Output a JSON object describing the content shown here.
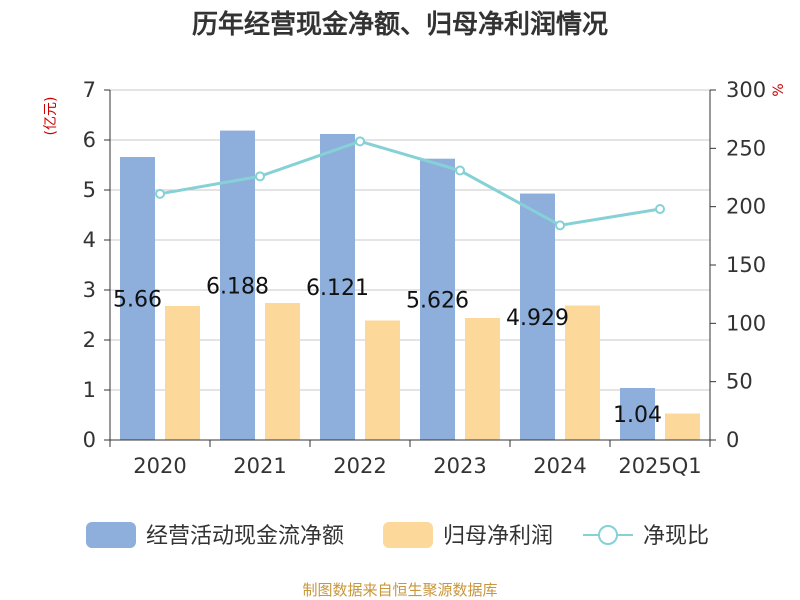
{
  "chart_data": {
    "type": "bar",
    "title": "历年经营现金净额、归母净利润情况",
    "categories": [
      "2020",
      "2021",
      "2022",
      "2023",
      "2024",
      "2025Q1"
    ],
    "series": [
      {
        "name": "经营活动现金流净额",
        "type": "bar",
        "axis": "left",
        "values": [
          5.66,
          6.188,
          6.121,
          5.626,
          4.929,
          1.04
        ],
        "labels": [
          "5.66",
          "6.188",
          "6.121",
          "5.626",
          "4.929",
          "1.04"
        ]
      },
      {
        "name": "归母净利润",
        "type": "bar",
        "axis": "left",
        "values": [
          2.68,
          2.74,
          2.39,
          2.44,
          2.69,
          0.53
        ]
      },
      {
        "name": "净现比",
        "type": "line",
        "axis": "right",
        "values": [
          211,
          226,
          256,
          231,
          184,
          198
        ]
      }
    ],
    "y_left": {
      "unit": "(亿元)",
      "ylim": [
        0,
        7
      ],
      "ticks": [
        "0",
        "1",
        "2",
        "3",
        "4",
        "5",
        "6",
        "7"
      ]
    },
    "y_right": {
      "unit": "%",
      "ylim": [
        0,
        300
      ],
      "ticks": [
        "0",
        "50",
        "100",
        "150",
        "200",
        "250",
        "300"
      ]
    },
    "grid": true,
    "legend_position": "bottom",
    "colors": {
      "cash_flow": "#8eaedb",
      "net_profit": "#fcd89a",
      "ratio": "#86d1d6"
    }
  },
  "source": "制图数据来自恒生聚源数据库"
}
